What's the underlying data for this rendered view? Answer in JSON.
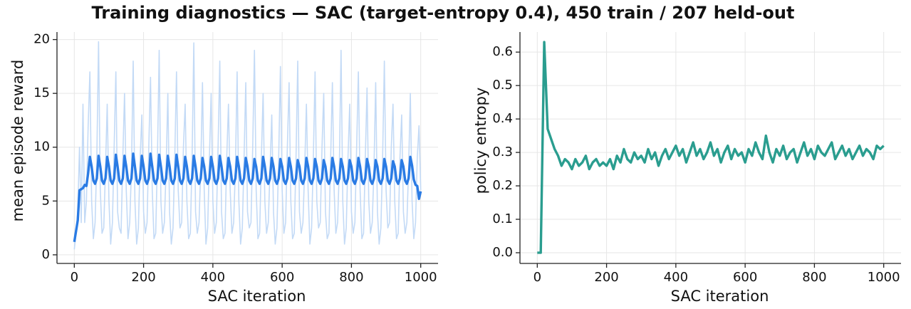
{
  "title": "Training diagnostics — SAC (target-entropy 0.4), 450 train / 207 held-out",
  "chart_data": [
    {
      "type": "line",
      "xlabel": "SAC iteration",
      "ylabel": "mean episode reward",
      "xlim": [
        -50,
        1050
      ],
      "ylim": [
        -0.8,
        20.7
      ],
      "xticks": [
        0,
        200,
        400,
        600,
        800,
        1000
      ],
      "yticks": [
        0,
        5,
        10,
        15,
        20
      ],
      "grid": true,
      "x": [
        0,
        5,
        10,
        15,
        20,
        25,
        30,
        35,
        40,
        45,
        50,
        55,
        60,
        65,
        70,
        75,
        80,
        85,
        90,
        95,
        100,
        105,
        110,
        115,
        120,
        125,
        130,
        135,
        140,
        145,
        150,
        155,
        160,
        165,
        170,
        175,
        180,
        185,
        190,
        195,
        200,
        205,
        210,
        215,
        220,
        225,
        230,
        235,
        240,
        245,
        250,
        255,
        260,
        265,
        270,
        275,
        280,
        285,
        290,
        295,
        300,
        305,
        310,
        315,
        320,
        325,
        330,
        335,
        340,
        345,
        350,
        355,
        360,
        365,
        370,
        375,
        380,
        385,
        390,
        395,
        400,
        405,
        410,
        415,
        420,
        425,
        430,
        435,
        440,
        445,
        450,
        455,
        460,
        465,
        470,
        475,
        480,
        485,
        490,
        495,
        500,
        505,
        510,
        515,
        520,
        525,
        530,
        535,
        540,
        545,
        550,
        555,
        560,
        565,
        570,
        575,
        580,
        585,
        590,
        595,
        600,
        605,
        610,
        615,
        620,
        625,
        630,
        635,
        640,
        645,
        650,
        655,
        660,
        665,
        670,
        675,
        680,
        685,
        690,
        695,
        700,
        705,
        710,
        715,
        720,
        725,
        730,
        735,
        740,
        745,
        750,
        755,
        760,
        765,
        770,
        775,
        780,
        785,
        790,
        795,
        800,
        805,
        810,
        815,
        820,
        825,
        830,
        835,
        840,
        845,
        850,
        855,
        860,
        865,
        870,
        875,
        880,
        885,
        890,
        895,
        900,
        905,
        910,
        915,
        920,
        925,
        930,
        935,
        940,
        945,
        950,
        955,
        960,
        965,
        970,
        975,
        980,
        985,
        990,
        995,
        1000
      ],
      "series": [
        {
          "color": "#c3daf6",
          "values": [
            0.5,
            2,
            4,
            10,
            3,
            14,
            3,
            5,
            12,
            17,
            5,
            1.5,
            3,
            9,
            19.8,
            6,
            2,
            2.5,
            8,
            14,
            5,
            1,
            3,
            10,
            17,
            4,
            2.5,
            2,
            9,
            15,
            6,
            1.5,
            3,
            8,
            18,
            5,
            1,
            2.5,
            9,
            13,
            4,
            2,
            3,
            10,
            16.5,
            6,
            1.5,
            2,
            9,
            19,
            5,
            2,
            3,
            8,
            15,
            4,
            1,
            2.5,
            9,
            17,
            6,
            2.5,
            3,
            10,
            14,
            5,
            1.5,
            2,
            9,
            19.7,
            4,
            2,
            3,
            8,
            16,
            6,
            1,
            2.5,
            9,
            15,
            5,
            2,
            3,
            10,
            18,
            4,
            1.5,
            2,
            9,
            14,
            6,
            2,
            3,
            8,
            17,
            5,
            1,
            2.5,
            9,
            16,
            4,
            2.5,
            3,
            10,
            19,
            6,
            1.5,
            2,
            9,
            15,
            5,
            2,
            3,
            8,
            13,
            4,
            1,
            2.5,
            9,
            17.5,
            6,
            2,
            3,
            10,
            16,
            5,
            1.5,
            2,
            9,
            18,
            4,
            2,
            3,
            8,
            14,
            6,
            1,
            2.5,
            9,
            17,
            5,
            2.5,
            3,
            10,
            15,
            4,
            1.5,
            2,
            9,
            16,
            6,
            2,
            3,
            8,
            19,
            5,
            1,
            2.5,
            9,
            14,
            4,
            2,
            3,
            10,
            17,
            6,
            1.5,
            2,
            9,
            15.5,
            5,
            2,
            3,
            8,
            16,
            4,
            1,
            2.5,
            9,
            18,
            6,
            2.5,
            3,
            10,
            14,
            5,
            1.5,
            2,
            9,
            13,
            4,
            2,
            3,
            8,
            15,
            5,
            1.5,
            3,
            9,
            12,
            6
          ]
        },
        {
          "color": "#2a7be4",
          "values": [
            1.2,
            2.2,
            3.2,
            6.0,
            6.1,
            6.2,
            6.5,
            6.4,
            7.6,
            9.1,
            8.2,
            6.9,
            6.6,
            7.1,
            9.2,
            8.2,
            6.9,
            6.6,
            7.1,
            9.1,
            8.2,
            6.9,
            6.6,
            7.1,
            9.3,
            8.2,
            6.9,
            6.6,
            7.1,
            9.2,
            8.2,
            6.9,
            6.6,
            7.1,
            9.4,
            8.2,
            6.9,
            6.6,
            7.1,
            9.2,
            8.2,
            6.9,
            6.6,
            7.1,
            9.4,
            8.2,
            6.9,
            6.6,
            7.1,
            9.3,
            8.2,
            6.9,
            6.6,
            7.1,
            9.2,
            8.2,
            6.9,
            6.6,
            7.1,
            9.3,
            8.2,
            6.9,
            6.6,
            7.1,
            9.1,
            8.2,
            6.9,
            6.6,
            7.1,
            9.2,
            8.2,
            6.9,
            6.6,
            7.1,
            9.0,
            8.2,
            6.9,
            6.6,
            7.1,
            9.1,
            8.2,
            6.9,
            6.6,
            7.1,
            9.2,
            8.2,
            6.9,
            6.6,
            7.1,
            9.0,
            8.2,
            6.9,
            6.6,
            7.1,
            9.1,
            8.2,
            6.9,
            6.6,
            7.1,
            9.0,
            8.2,
            6.9,
            6.6,
            7.1,
            8.9,
            8.2,
            6.9,
            6.6,
            7.1,
            9.1,
            8.2,
            6.9,
            6.6,
            7.1,
            9.0,
            8.2,
            6.9,
            6.6,
            7.1,
            8.9,
            8.2,
            6.9,
            6.6,
            7.1,
            9.0,
            8.2,
            6.9,
            6.6,
            7.1,
            8.8,
            8.2,
            6.9,
            6.6,
            7.1,
            9.0,
            8.2,
            6.9,
            6.6,
            7.1,
            8.9,
            8.2,
            6.9,
            6.6,
            7.1,
            8.8,
            8.2,
            6.9,
            6.6,
            7.1,
            9.0,
            8.2,
            6.9,
            6.6,
            7.1,
            8.9,
            8.2,
            6.9,
            6.6,
            7.1,
            8.8,
            8.2,
            6.9,
            6.6,
            7.1,
            9.0,
            8.2,
            6.9,
            6.6,
            7.1,
            8.9,
            8.2,
            6.9,
            6.6,
            7.1,
            8.8,
            8.2,
            6.9,
            6.6,
            7.1,
            8.9,
            8.2,
            6.9,
            6.6,
            7.1,
            8.7,
            8.2,
            6.9,
            6.6,
            7.1,
            8.8,
            8.2,
            6.9,
            6.6,
            7.1,
            9.1,
            8.3,
            7.0,
            6.5,
            6.4,
            5.2,
            5.9
          ]
        }
      ]
    },
    {
      "type": "line",
      "xlabel": "SAC iteration",
      "ylabel": "policy entropy",
      "xlim": [
        -50,
        1050
      ],
      "ylim": [
        -0.032,
        0.66
      ],
      "xticks": [
        0,
        200,
        400,
        600,
        800,
        1000
      ],
      "yticks": [
        {
          "value": 0,
          "label": "0.0"
        },
        0.1,
        0.2,
        0.3,
        0.4,
        0.5,
        0.6
      ],
      "grid": true,
      "x": [
        0,
        10,
        20,
        30,
        40,
        50,
        60,
        70,
        80,
        90,
        100,
        110,
        120,
        130,
        140,
        150,
        160,
        170,
        180,
        190,
        200,
        210,
        220,
        230,
        240,
        250,
        260,
        270,
        280,
        290,
        300,
        310,
        320,
        330,
        340,
        350,
        360,
        370,
        380,
        390,
        400,
        410,
        420,
        430,
        440,
        450,
        460,
        470,
        480,
        490,
        500,
        510,
        520,
        530,
        540,
        550,
        560,
        570,
        580,
        590,
        600,
        610,
        620,
        630,
        640,
        650,
        660,
        670,
        680,
        690,
        700,
        710,
        720,
        730,
        740,
        750,
        760,
        770,
        780,
        790,
        800,
        810,
        820,
        830,
        840,
        850,
        860,
        870,
        880,
        890,
        900,
        910,
        920,
        930,
        940,
        950,
        960,
        970,
        980,
        990,
        1000
      ],
      "series": [
        {
          "color": "#2a9d8f",
          "values": [
            0,
            0,
            0.63,
            0.37,
            0.34,
            0.31,
            0.29,
            0.26,
            0.28,
            0.27,
            0.25,
            0.28,
            0.26,
            0.27,
            0.29,
            0.25,
            0.27,
            0.28,
            0.26,
            0.27,
            0.26,
            0.28,
            0.25,
            0.29,
            0.27,
            0.31,
            0.28,
            0.27,
            0.3,
            0.28,
            0.29,
            0.27,
            0.31,
            0.28,
            0.3,
            0.26,
            0.29,
            0.31,
            0.28,
            0.3,
            0.32,
            0.29,
            0.31,
            0.27,
            0.3,
            0.33,
            0.29,
            0.31,
            0.28,
            0.3,
            0.33,
            0.29,
            0.31,
            0.27,
            0.3,
            0.32,
            0.28,
            0.31,
            0.29,
            0.3,
            0.27,
            0.31,
            0.29,
            0.33,
            0.3,
            0.28,
            0.35,
            0.3,
            0.27,
            0.31,
            0.29,
            0.32,
            0.28,
            0.3,
            0.31,
            0.27,
            0.3,
            0.33,
            0.29,
            0.31,
            0.28,
            0.32,
            0.3,
            0.29,
            0.31,
            0.33,
            0.28,
            0.3,
            0.32,
            0.29,
            0.31,
            0.28,
            0.3,
            0.32,
            0.29,
            0.31,
            0.3,
            0.28,
            0.32,
            0.31,
            0.32
          ]
        }
      ]
    }
  ]
}
